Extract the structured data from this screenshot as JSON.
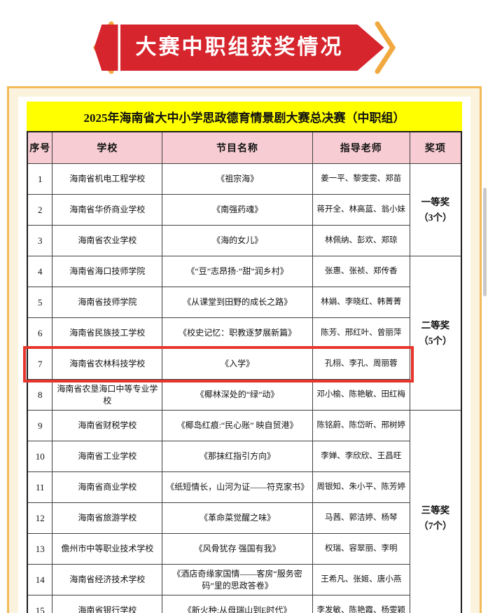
{
  "banner": {
    "title": "大赛中职组获奖情况"
  },
  "document": {
    "title": "2025年海南省大中小学思政德育情景剧大赛总决赛（中职组）",
    "table": {
      "headers": [
        "序号",
        "学校",
        "节目名称",
        "指导老师",
        "奖项"
      ],
      "rows": [
        {
          "no": "1",
          "school": "海南省机电工程学校",
          "program": "《祖宗海》",
          "teachers": "姜一平、黎雯雯、郑苗",
          "award": {
            "label": "一等奖",
            "count": "（3个）",
            "rowspan": 3
          }
        },
        {
          "no": "2",
          "school": "海南省华侨商业学校",
          "program": "《南强药魂》",
          "teachers": "蒋开全、林高蓝、翁小妹"
        },
        {
          "no": "3",
          "school": "海南省农业学校",
          "program": "《海的女儿》",
          "teachers": "林佩纳、彭欢、郑琼"
        },
        {
          "no": "4",
          "school": "海南省海口技师学院",
          "program": "《“豆”志昂扬·“甜”润乡村》",
          "teachers": "张惠、张祯、郑传香",
          "award": {
            "label": "二等奖",
            "count": "（5个）",
            "rowspan": 5
          }
        },
        {
          "no": "5",
          "school": "海南省技师学院",
          "program": "《从课堂到田野的成长之路》",
          "teachers": "林娟、李晓红、韩菁菁"
        },
        {
          "no": "6",
          "school": "海南省民族技工学校",
          "program": "《校史记忆：职教逐梦展新篇》",
          "teachers": "陈芳、邢红叶、曾丽萍"
        },
        {
          "no": "7",
          "school": "海南省农林科技学校",
          "program": "《入学》",
          "teachers": "孔栩、李孔、周丽蓉",
          "highlight": true
        },
        {
          "no": "8",
          "school": "海南省农垦海口中等专业学校",
          "program": "《椰林深处的“绿”动》",
          "teachers": "邓小榆、陈艳敏、田红梅"
        },
        {
          "no": "9",
          "school": "海南省财税学校",
          "program": "《椰岛红痕:“民心账” 映自贸港》",
          "teachers": "陈铭蔚、陈岱昕、邢树婷",
          "award": {
            "label": "三等奖",
            "count": "（7个）",
            "rowspan": 7
          }
        },
        {
          "no": "10",
          "school": "海南省工业学校",
          "program": "《那抹红指引方向》",
          "teachers": "李婵、李欣欣、王昌旺"
        },
        {
          "no": "11",
          "school": "海南省商业学校",
          "program": "《纸短情长，山河为证——符克家书》",
          "teachers": "周银知、朱小平、陈芳婷"
        },
        {
          "no": "12",
          "school": "海南省旅游学校",
          "program": "《革命菜觉醒之味》",
          "teachers": "马茜、郭洁婷、杨琴"
        },
        {
          "no": "13",
          "school": "儋州市中等职业技术学校",
          "program": "《风骨犹存 强国有我》",
          "teachers": "权瑞、容翠丽、李明"
        },
        {
          "no": "14",
          "school": "海南省经济技术学校",
          "program": "《酒店奇缘家国情——客房“服务密码”里的思政答卷》",
          "teachers": "王希凡、张姬、唐小燕"
        },
        {
          "no": "15",
          "school": "海南省银行学校",
          "program": "《新火种:从母瑞山到E时代》",
          "teachers": "李发敏、陈艳霞、杨雯颖"
        }
      ]
    }
  },
  "colors": {
    "banner_red": "#d6252d",
    "chevron_gold": "#f1a93f",
    "title_yellow": "#ffff00",
    "header_pink": "#f7cdd3",
    "frame_cream": "#fcf3de",
    "frame_orange": "#f2bb57",
    "highlight_red": "#e8352b"
  }
}
